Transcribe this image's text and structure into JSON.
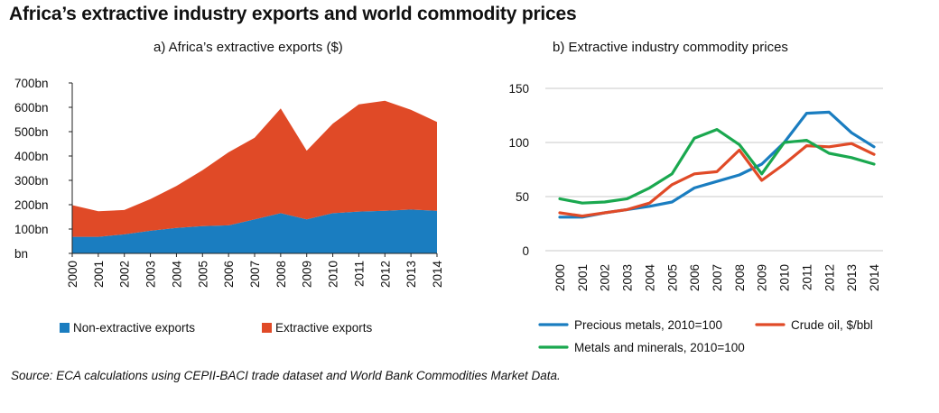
{
  "title": "Africa’s extractive industry exports and world commodity prices",
  "source": "Source: ECA calculations using CEPII-BACI trade dataset and World Bank Commodities Market Data.",
  "colors": {
    "blue": "#1a7dc0",
    "red": "#e04a27",
    "green": "#1aa84f"
  },
  "chart_data": [
    {
      "type": "area",
      "title": "a) Africa’s extractive exports ($)",
      "stacked": true,
      "categories": [
        "2000",
        "2001",
        "2002",
        "2003",
        "2004",
        "2005",
        "2006",
        "2007",
        "2008",
        "2009",
        "2010",
        "2011",
        "2012",
        "2013",
        "2014"
      ],
      "y_ticks": [
        "bn",
        "100bn",
        "200bn",
        "300bn",
        "400bn",
        "500bn",
        "600bn",
        "700bn"
      ],
      "ylim": [
        0,
        700
      ],
      "grid": false,
      "legend_position": "bottom",
      "series": [
        {
          "name": "Non-extractive exports",
          "color": "#1a7dc0",
          "values": [
            68,
            68,
            78,
            93,
            105,
            112,
            115,
            140,
            165,
            140,
            165,
            172,
            175,
            180,
            175
          ]
        },
        {
          "name": "Extractive exports",
          "color": "#e04a27",
          "values": [
            130,
            105,
            100,
            130,
            172,
            230,
            300,
            335,
            430,
            282,
            368,
            440,
            452,
            410,
            365
          ]
        }
      ]
    },
    {
      "type": "line",
      "title": "b) Extractive industry commodity prices",
      "categories": [
        "2000",
        "2001",
        "2002",
        "2003",
        "2004",
        "2005",
        "2006",
        "2007",
        "2008",
        "2009",
        "2010",
        "2011",
        "2012",
        "2013",
        "2014"
      ],
      "y_ticks": [
        "0",
        "50",
        "100",
        "150"
      ],
      "ylim": [
        0,
        150
      ],
      "grid": true,
      "legend_position": "bottom",
      "series": [
        {
          "name": "Precious metals, 2010=100",
          "color": "#1a7dc0",
          "values": [
            31,
            31,
            35,
            38,
            41,
            45,
            58,
            64,
            70,
            80,
            100,
            127,
            128,
            109,
            96
          ]
        },
        {
          "name": "Crude oil, $/bbl",
          "color": "#e04a27",
          "values": [
            35,
            32,
            35,
            38,
            44,
            61,
            71,
            73,
            93,
            65,
            80,
            97,
            96,
            99,
            89
          ]
        },
        {
          "name": "Metals and minerals, 2010=100",
          "color": "#1aa84f",
          "values": [
            48,
            44,
            45,
            48,
            58,
            71,
            104,
            112,
            98,
            71,
            100,
            102,
            90,
            86,
            80
          ]
        }
      ]
    }
  ]
}
